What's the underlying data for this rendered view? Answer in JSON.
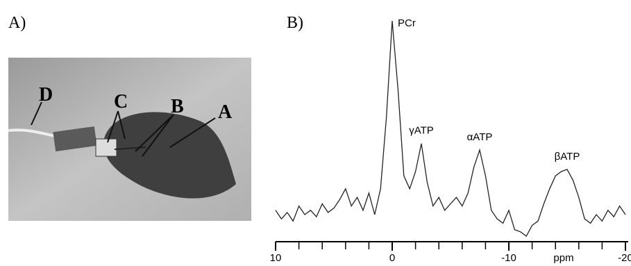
{
  "figure": {
    "panel_label": "A)",
    "photo_labels": [
      "D",
      "C",
      "B",
      "A"
    ]
  },
  "chart_data": {
    "type": "line",
    "panel_label": "B)",
    "x_label": "ppm",
    "x": [
      10,
      9.5,
      9,
      8.5,
      8,
      7.5,
      7,
      6.5,
      6,
      5.5,
      5,
      4.5,
      4,
      3.5,
      3,
      2.5,
      2,
      1.5,
      1,
      0.5,
      0,
      -0.5,
      -1,
      -1.5,
      -2,
      -2.5,
      -3,
      -3.5,
      -4,
      -4.5,
      -5,
      -5.5,
      -6,
      -6.5,
      -7,
      -7.5,
      -8,
      -8.5,
      -9,
      -9.5,
      -10,
      -10.5,
      -11,
      -11.5,
      -12,
      -12.5,
      -13,
      -13.5,
      -14,
      -14.5,
      -15,
      -15.5,
      -16,
      -16.5,
      -17,
      -17.5,
      -18,
      -18.5,
      -19,
      -19.5,
      -20
    ],
    "series": [
      {
        "color": "#222222",
        "values": [
          12,
          8,
          11,
          7,
          14,
          10,
          12,
          9,
          15,
          11,
          13,
          17,
          22,
          14,
          18,
          12,
          20,
          10,
          22,
          55,
          100,
          68,
          28,
          22,
          30,
          43,
          25,
          14,
          18,
          12,
          15,
          18,
          14,
          20,
          32,
          40,
          28,
          12,
          8,
          6,
          12,
          3,
          2,
          0,
          5,
          7,
          15,
          22,
          28,
          30,
          31,
          26,
          18,
          8,
          6,
          10,
          7,
          12,
          9,
          14,
          10
        ]
      }
    ],
    "annotations": [
      {
        "text": "PCr",
        "x": 0,
        "y": 100
      },
      {
        "text": "γATP",
        "x": -2.5,
        "y": 43
      },
      {
        "text": "αATP",
        "x": -7.5,
        "y": 40
      },
      {
        "text": "βATP",
        "x": -15,
        "y": 31
      }
    ],
    "xlim": [
      10,
      -20
    ],
    "ylim": [
      0,
      100
    ],
    "xticks": [
      10,
      0,
      -10,
      -20
    ],
    "xminor_ticks": [
      8,
      6,
      4,
      2,
      -2,
      -4,
      -6,
      -8,
      -12,
      -14,
      -16,
      -18
    ]
  }
}
